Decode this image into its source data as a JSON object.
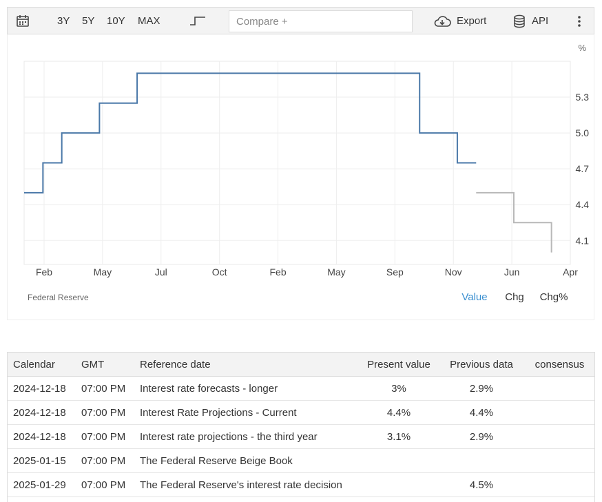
{
  "toolbar": {
    "ranges": [
      "3Y",
      "5Y",
      "10Y",
      "MAX"
    ],
    "compare_placeholder": "Compare +",
    "export_label": "Export",
    "api_label": "API"
  },
  "chart_data": {
    "type": "line",
    "unit": "%",
    "source": "Federal Reserve",
    "x_ticks": [
      "Feb",
      "May",
      "Jul",
      "Oct",
      "Feb",
      "May",
      "Sep",
      "Nov",
      "Jun",
      "Apr"
    ],
    "y_ticks": [
      4.1,
      4.4,
      4.7,
      5.0,
      5.3
    ],
    "ylim": [
      3.9,
      5.6
    ],
    "series": [
      {
        "color": "#4a78a8",
        "points": [
          [
            0,
            4.5
          ],
          [
            1,
            4.75
          ],
          [
            2,
            5.0
          ],
          [
            4,
            5.25
          ],
          [
            6,
            5.5
          ],
          [
            19,
            5.5
          ],
          [
            21,
            5.0
          ],
          [
            23,
            4.75
          ],
          [
            24,
            4.75
          ]
        ]
      },
      {
        "color": "#b8b8b8",
        "points": [
          [
            24,
            4.5
          ],
          [
            26,
            4.25
          ],
          [
            28,
            4.0
          ]
        ]
      }
    ],
    "tabs": [
      "Value",
      "Chg",
      "Chg%"
    ],
    "active_tab": "Value"
  },
  "table": {
    "headers": [
      "Calendar",
      "GMT",
      "Reference date",
      "Present value",
      "Previous data",
      "consensus"
    ],
    "rows": [
      [
        "2024-12-18",
        "07:00 PM",
        "Interest rate forecasts - longer",
        "3%",
        "2.9%",
        ""
      ],
      [
        "2024-12-18",
        "07:00 PM",
        "Interest Rate Projections - Current",
        "4.4%",
        "4.4%",
        ""
      ],
      [
        "2024-12-18",
        "07:00 PM",
        "Interest rate projections - the third year",
        "3.1%",
        "2.9%",
        ""
      ],
      [
        "2025-01-15",
        "07:00 PM",
        "The Federal Reserve Beige Book",
        "",
        "",
        ""
      ],
      [
        "2025-01-29",
        "07:00 PM",
        "The Federal Reserve's interest rate decision",
        "",
        "4.5%",
        ""
      ]
    ]
  }
}
